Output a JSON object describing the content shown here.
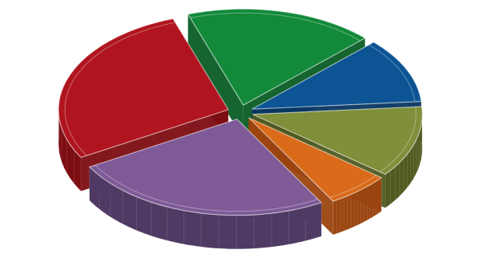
{
  "chart_data": {
    "type": "pie",
    "style": "3d-exploded",
    "title": "",
    "legend": "none",
    "data_labels": "none",
    "slices": [
      {
        "value": 28,
        "color": "#b0151f",
        "side_color": "#7c0d13"
      },
      {
        "value": 25,
        "color": "#7e5a97",
        "side_color": "#4e3a63"
      },
      {
        "value": 6,
        "color": "#d96b1b",
        "side_color": "#9a4510"
      },
      {
        "value": 12,
        "color": "#7f8f3a",
        "side_color": "#4f5a20"
      },
      {
        "value": 11,
        "color": "#0c5494",
        "side_color": "#073660"
      },
      {
        "value": 18,
        "color": "#128a3a",
        "side_color": "#0a5c25"
      }
    ],
    "start_angle_deg": 109,
    "direction": "counterclockwise"
  }
}
